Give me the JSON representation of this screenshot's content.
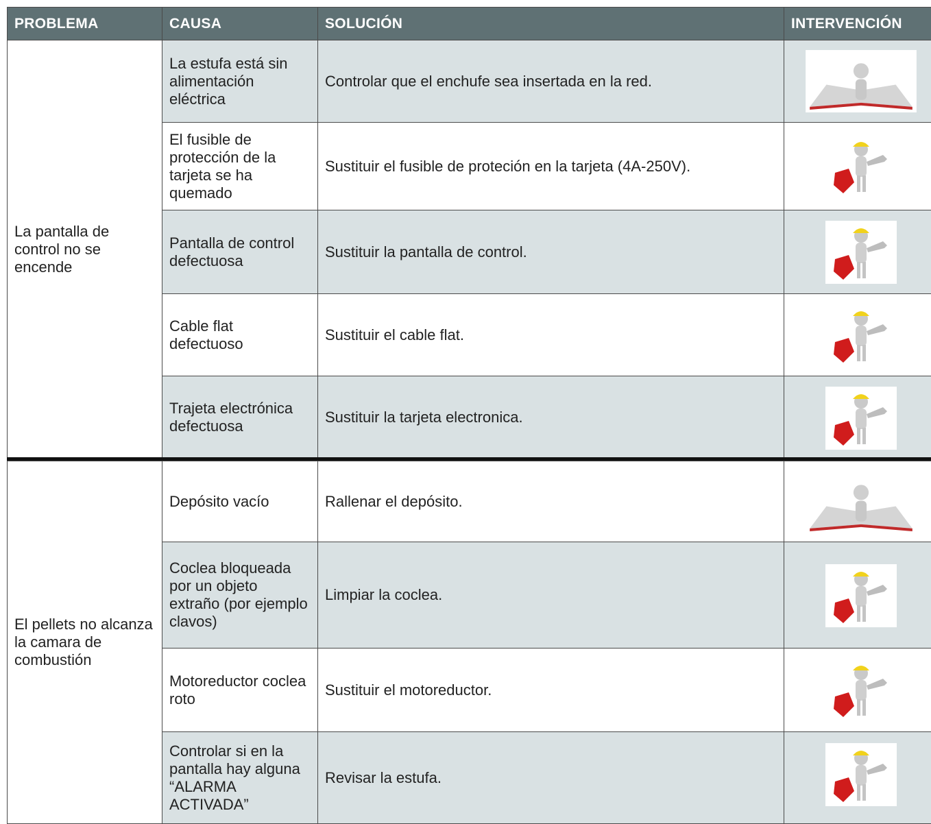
{
  "header": [
    "PROBLEMA",
    "CAUSA",
    "SOLUCIÓN",
    "INTERVENCIÓN"
  ],
  "groups": [
    {
      "problem": "La pantalla de control no se encende",
      "rows": [
        {
          "cause": "La estufa está sin alimentación eléctrica",
          "solution": "Controlar que el enchufe sea insertada en la red."
        },
        {
          "cause": "El fusible de protección de la tarjeta se ha quemado",
          "solution": "Sustituir el fusible de proteción en la tarjeta (4A-250V)."
        },
        {
          "cause": "Pantalla de control defectuosa",
          "solution": "Sustituir la pantalla de control."
        },
        {
          "cause": "Cable flat defectuoso",
          "solution": "Sustituir el cable flat."
        },
        {
          "cause": "Trajeta electrónica defectuosa",
          "solution": "Sustituir la tarjeta electronica."
        }
      ]
    },
    {
      "problem": "El pellets no alcanza la camara de combustión",
      "rows": [
        {
          "cause": "Depósito vacío",
          "solution": "Rallenar el depósito."
        },
        {
          "cause": "Coclea bloqueada por un objeto extraño (por ejemplo clavos)",
          "solution": "Limpiar la coclea."
        },
        {
          "cause": "Motoreductor coclea roto",
          "solution": "Sustituir el motoreductor."
        },
        {
          "cause": "Controlar si en la pantalla hay alguna “ALARMA ACTIVADA”",
          "solution": "Revisar la estufa."
        }
      ]
    }
  ]
}
